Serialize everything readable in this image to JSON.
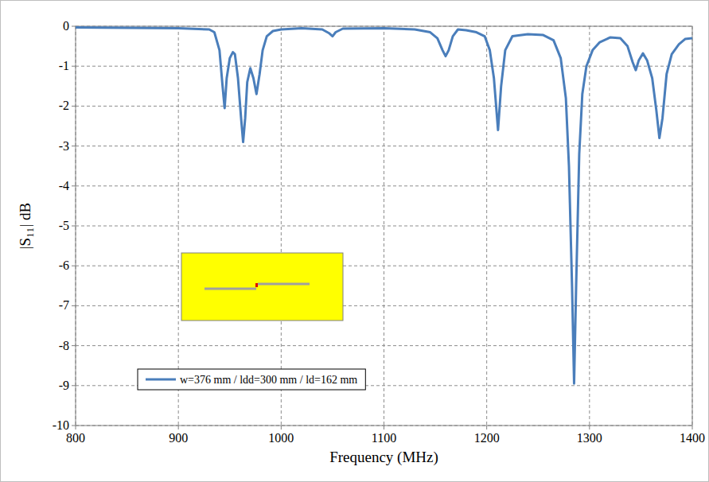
{
  "chart_data": {
    "type": "line",
    "x_label": "Frequency (MHz)",
    "y_label": "|S₁₁| dB",
    "x": [
      800,
      850,
      900,
      930,
      935,
      940,
      943,
      945,
      947,
      950,
      953,
      955,
      958,
      961,
      963,
      965,
      967,
      970,
      973,
      976,
      979,
      982,
      986,
      992,
      1000,
      1020,
      1040,
      1047,
      1050,
      1053,
      1060,
      1100,
      1130,
      1145,
      1152,
      1157,
      1160,
      1163,
      1167,
      1172,
      1180,
      1190,
      1198,
      1203,
      1207,
      1211,
      1214,
      1218,
      1225,
      1240,
      1255,
      1265,
      1272,
      1277,
      1280,
      1283,
      1285,
      1287,
      1290,
      1293,
      1297,
      1303,
      1310,
      1320,
      1330,
      1337,
      1342,
      1345,
      1348,
      1352,
      1356,
      1361,
      1365,
      1368,
      1371,
      1375,
      1380,
      1387,
      1393,
      1400
    ],
    "series": [
      {
        "name": "w=376 mm / ldd=300 mm / ld=162 mm",
        "color": "#4a7ebb",
        "values": [
          -0.03,
          -0.04,
          -0.05,
          -0.08,
          -0.15,
          -0.6,
          -1.5,
          -2.05,
          -1.3,
          -0.8,
          -0.65,
          -0.7,
          -1.3,
          -2.3,
          -2.9,
          -2.3,
          -1.4,
          -1.05,
          -1.3,
          -1.7,
          -1.2,
          -0.6,
          -0.25,
          -0.12,
          -0.08,
          -0.05,
          -0.08,
          -0.18,
          -0.25,
          -0.15,
          -0.06,
          -0.05,
          -0.08,
          -0.15,
          -0.3,
          -0.6,
          -0.75,
          -0.6,
          -0.25,
          -0.08,
          -0.1,
          -0.15,
          -0.25,
          -0.6,
          -1.3,
          -2.6,
          -1.5,
          -0.6,
          -0.25,
          -0.2,
          -0.22,
          -0.35,
          -0.8,
          -1.8,
          -3.5,
          -6.5,
          -8.95,
          -6.5,
          -3.2,
          -1.7,
          -1.0,
          -0.6,
          -0.4,
          -0.28,
          -0.3,
          -0.5,
          -0.9,
          -1.1,
          -0.85,
          -0.68,
          -0.85,
          -1.3,
          -2.1,
          -2.8,
          -2.3,
          -1.2,
          -0.7,
          -0.45,
          -0.32,
          -0.3
        ]
      }
    ],
    "xlim": [
      800,
      1400
    ],
    "ylim": [
      -10,
      0
    ],
    "xticks": [
      800,
      900,
      1000,
      1100,
      1200,
      1300,
      1400
    ],
    "yticks": [
      0,
      -1,
      -2,
      -3,
      -4,
      -5,
      -6,
      -7,
      -8,
      -9,
      -10
    ],
    "grid": true,
    "legend": "lower left"
  }
}
